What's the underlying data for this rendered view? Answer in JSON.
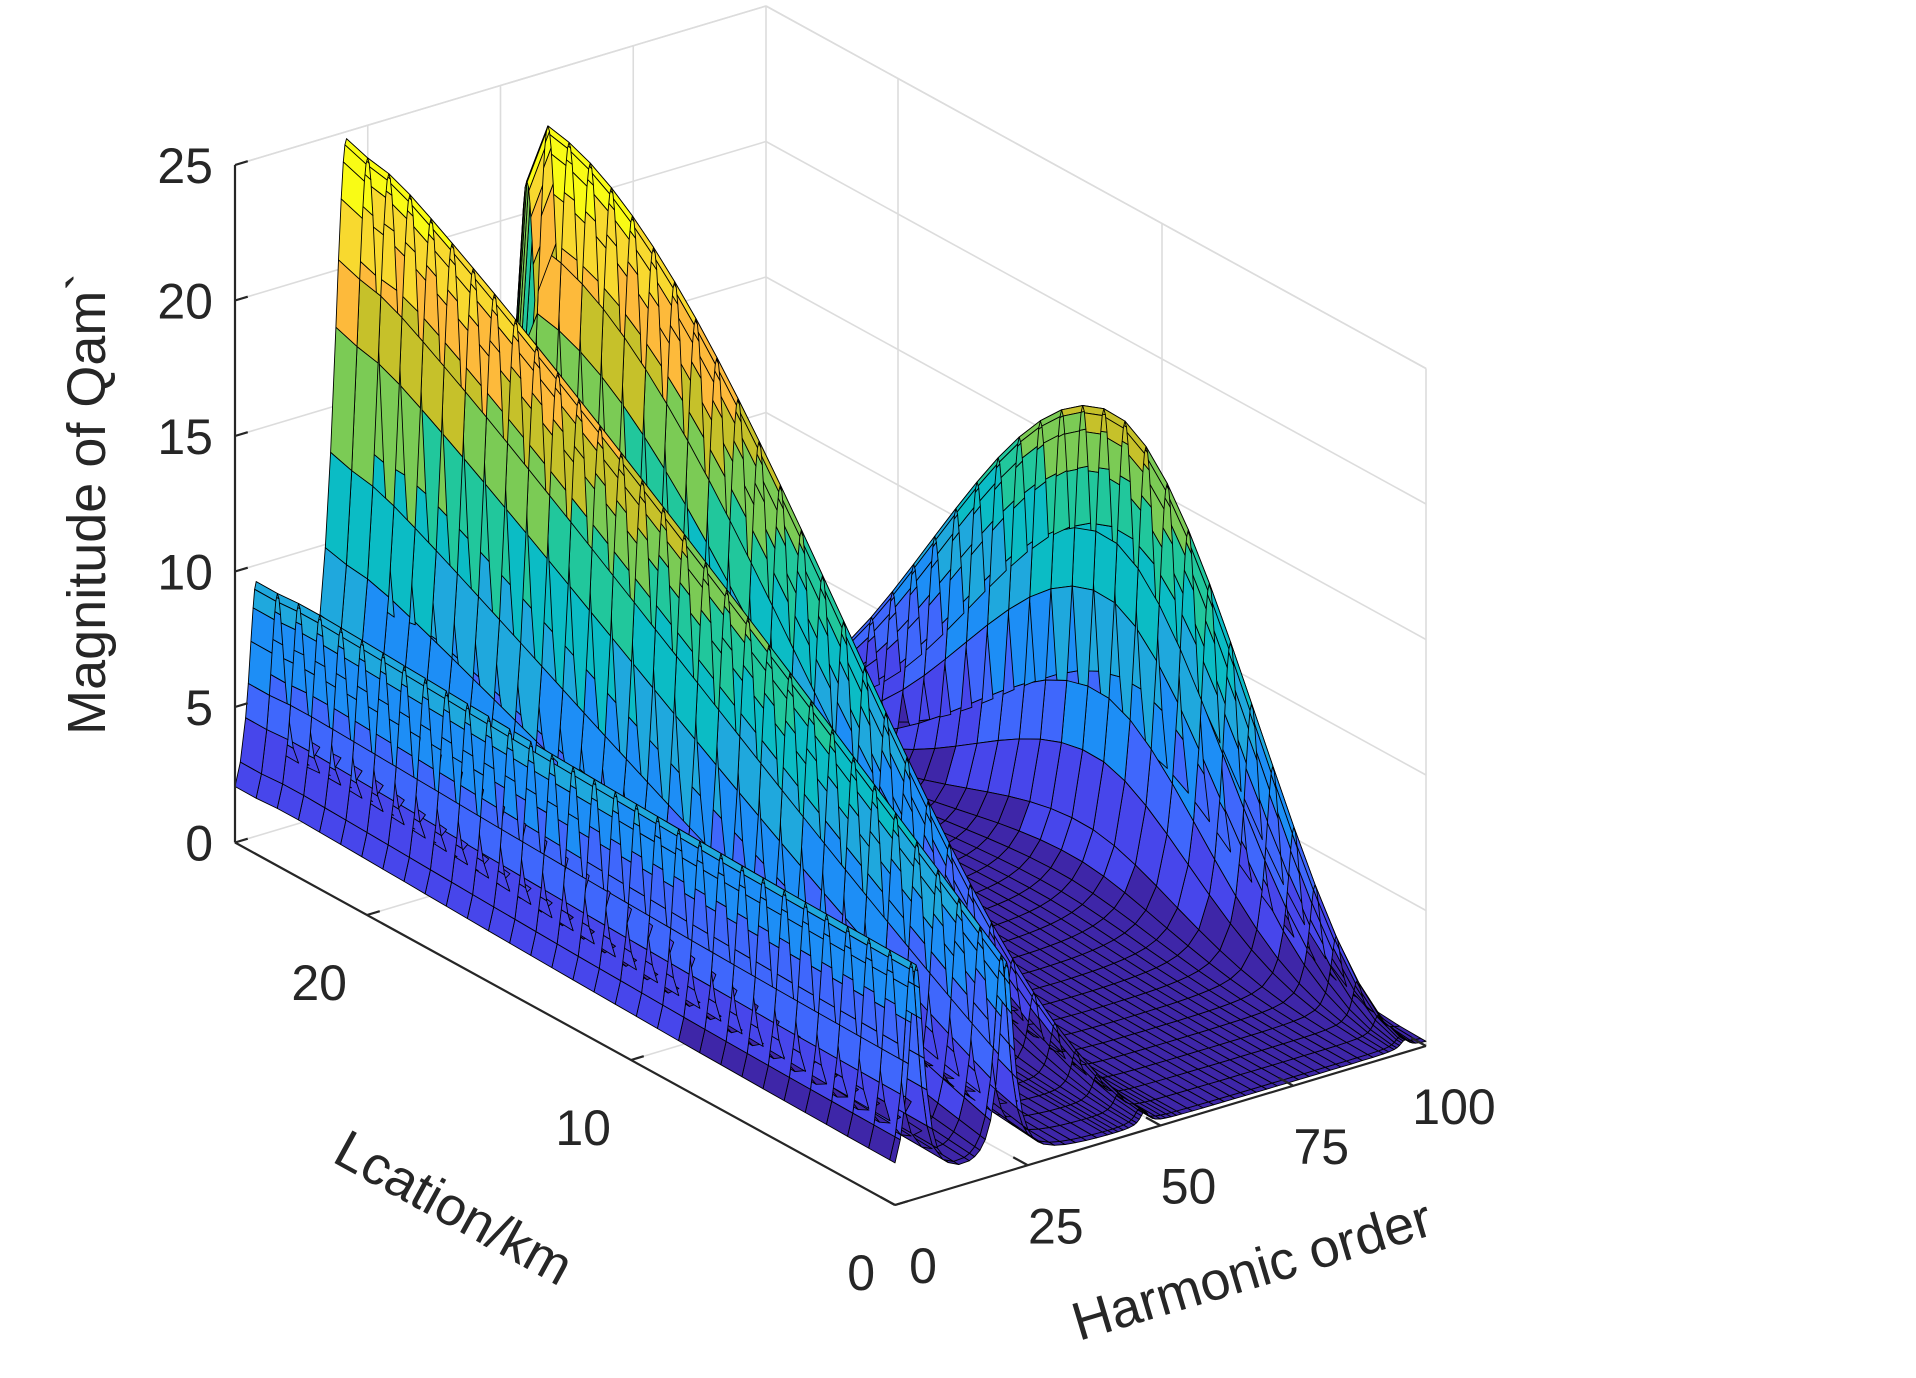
{
  "chart_data": {
    "type": "surface",
    "title": "",
    "xlabel": "Harmonic order",
    "ylabel": "Lcation/km",
    "zlabel": "Magnitude of Qam`",
    "xlim": [
      0,
      100
    ],
    "ylim": [
      0,
      25
    ],
    "zlim": [
      0,
      25
    ],
    "x_ticks": [
      0,
      25,
      50,
      75,
      100
    ],
    "y_ticks": [
      0,
      10,
      20
    ],
    "z_ticks": [
      0,
      5,
      10,
      15,
      20,
      25
    ],
    "x_tick_labels": [
      "0",
      "25",
      "50",
      "75",
      "100"
    ],
    "y_tick_labels": [
      "0",
      "10",
      "20"
    ],
    "z_tick_labels": [
      "0",
      "5",
      "10",
      "15",
      "20",
      "25"
    ],
    "grid": true,
    "colormap": "parula",
    "colors": [
      "#3e26a8",
      "#4746eb",
      "#3f67fc",
      "#1d8ef6",
      "#1fa8dd",
      "#0bbcc5",
      "#21c79c",
      "#7bcb55",
      "#c6c12a",
      "#fdba3b",
      "#f8d92f",
      "#f9fb15"
    ],
    "peaks": [
      {
        "harmonic_order": 4,
        "start_height_at_location_25": 8.4,
        "end_height_at_location_0": 8.4
      },
      {
        "harmonic_order": 21,
        "start_height_at_location_25": 24.5,
        "end_height_at_location_0": 7.5
      },
      {
        "harmonic_order": 47,
        "start_height_at_location_25": 0.5,
        "peak_height": 24.5,
        "peak_location_km": 23,
        "end_height_at_location_0": 0.5
      },
      {
        "harmonic_order": 96,
        "start_height_at_location_25": 0.3,
        "peak_height": 17.5,
        "peak_location_km": 11,
        "end_height_at_location_0": 0.3
      }
    ]
  }
}
